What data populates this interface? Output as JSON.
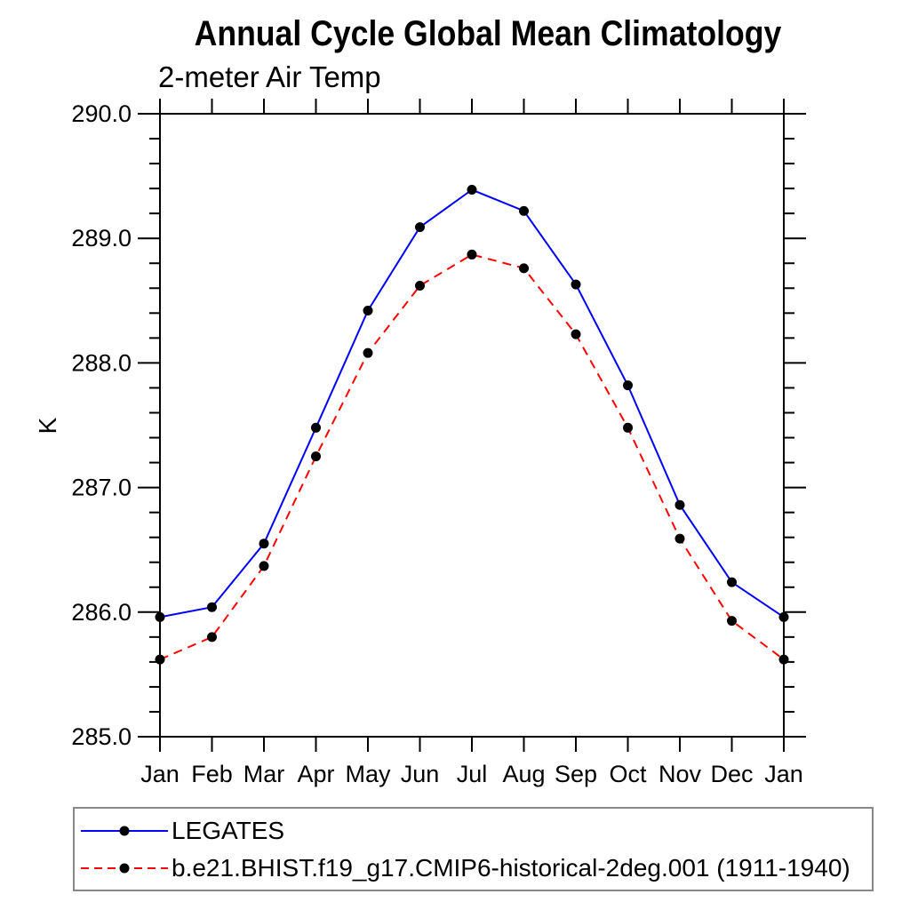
{
  "chart_data": {
    "type": "line",
    "title": "Annual Cycle Global Mean Climatology",
    "subtitle": "2-meter Air Temp",
    "ylabel": "K",
    "xlabel": "",
    "categories": [
      "Jan",
      "Feb",
      "Mar",
      "Apr",
      "May",
      "Jun",
      "Jul",
      "Aug",
      "Sep",
      "Oct",
      "Nov",
      "Dec",
      "Jan"
    ],
    "series": [
      {
        "name": "LEGATES",
        "color": "#0000ff",
        "line_style": "solid",
        "marker": "filled-circle",
        "marker_color": "#000000",
        "values": [
          285.96,
          286.04,
          286.55,
          287.48,
          288.42,
          289.09,
          289.39,
          289.22,
          288.63,
          287.82,
          286.86,
          286.24,
          285.96
        ]
      },
      {
        "name": "b.e21.BHIST.f19_g17.CMIP6-historical-2deg.001 (1911-1940)",
        "color": "#ff0000",
        "line_style": "dashed",
        "marker": "filled-circle",
        "marker_color": "#000000",
        "values": [
          285.62,
          285.8,
          286.37,
          287.25,
          288.08,
          288.62,
          288.87,
          288.76,
          288.23,
          287.48,
          286.59,
          285.93,
          285.62
        ]
      }
    ],
    "ylim": [
      285.0,
      290.0
    ],
    "yticks": [
      "285.0",
      "286.0",
      "287.0",
      "288.0",
      "289.0",
      "290.0"
    ],
    "y_minor_step": 0.2,
    "grid": false,
    "legend_position": "bottom-left",
    "axis_color": "#000000",
    "background_color": "#ffffff",
    "legend_border_color": "#888888"
  }
}
